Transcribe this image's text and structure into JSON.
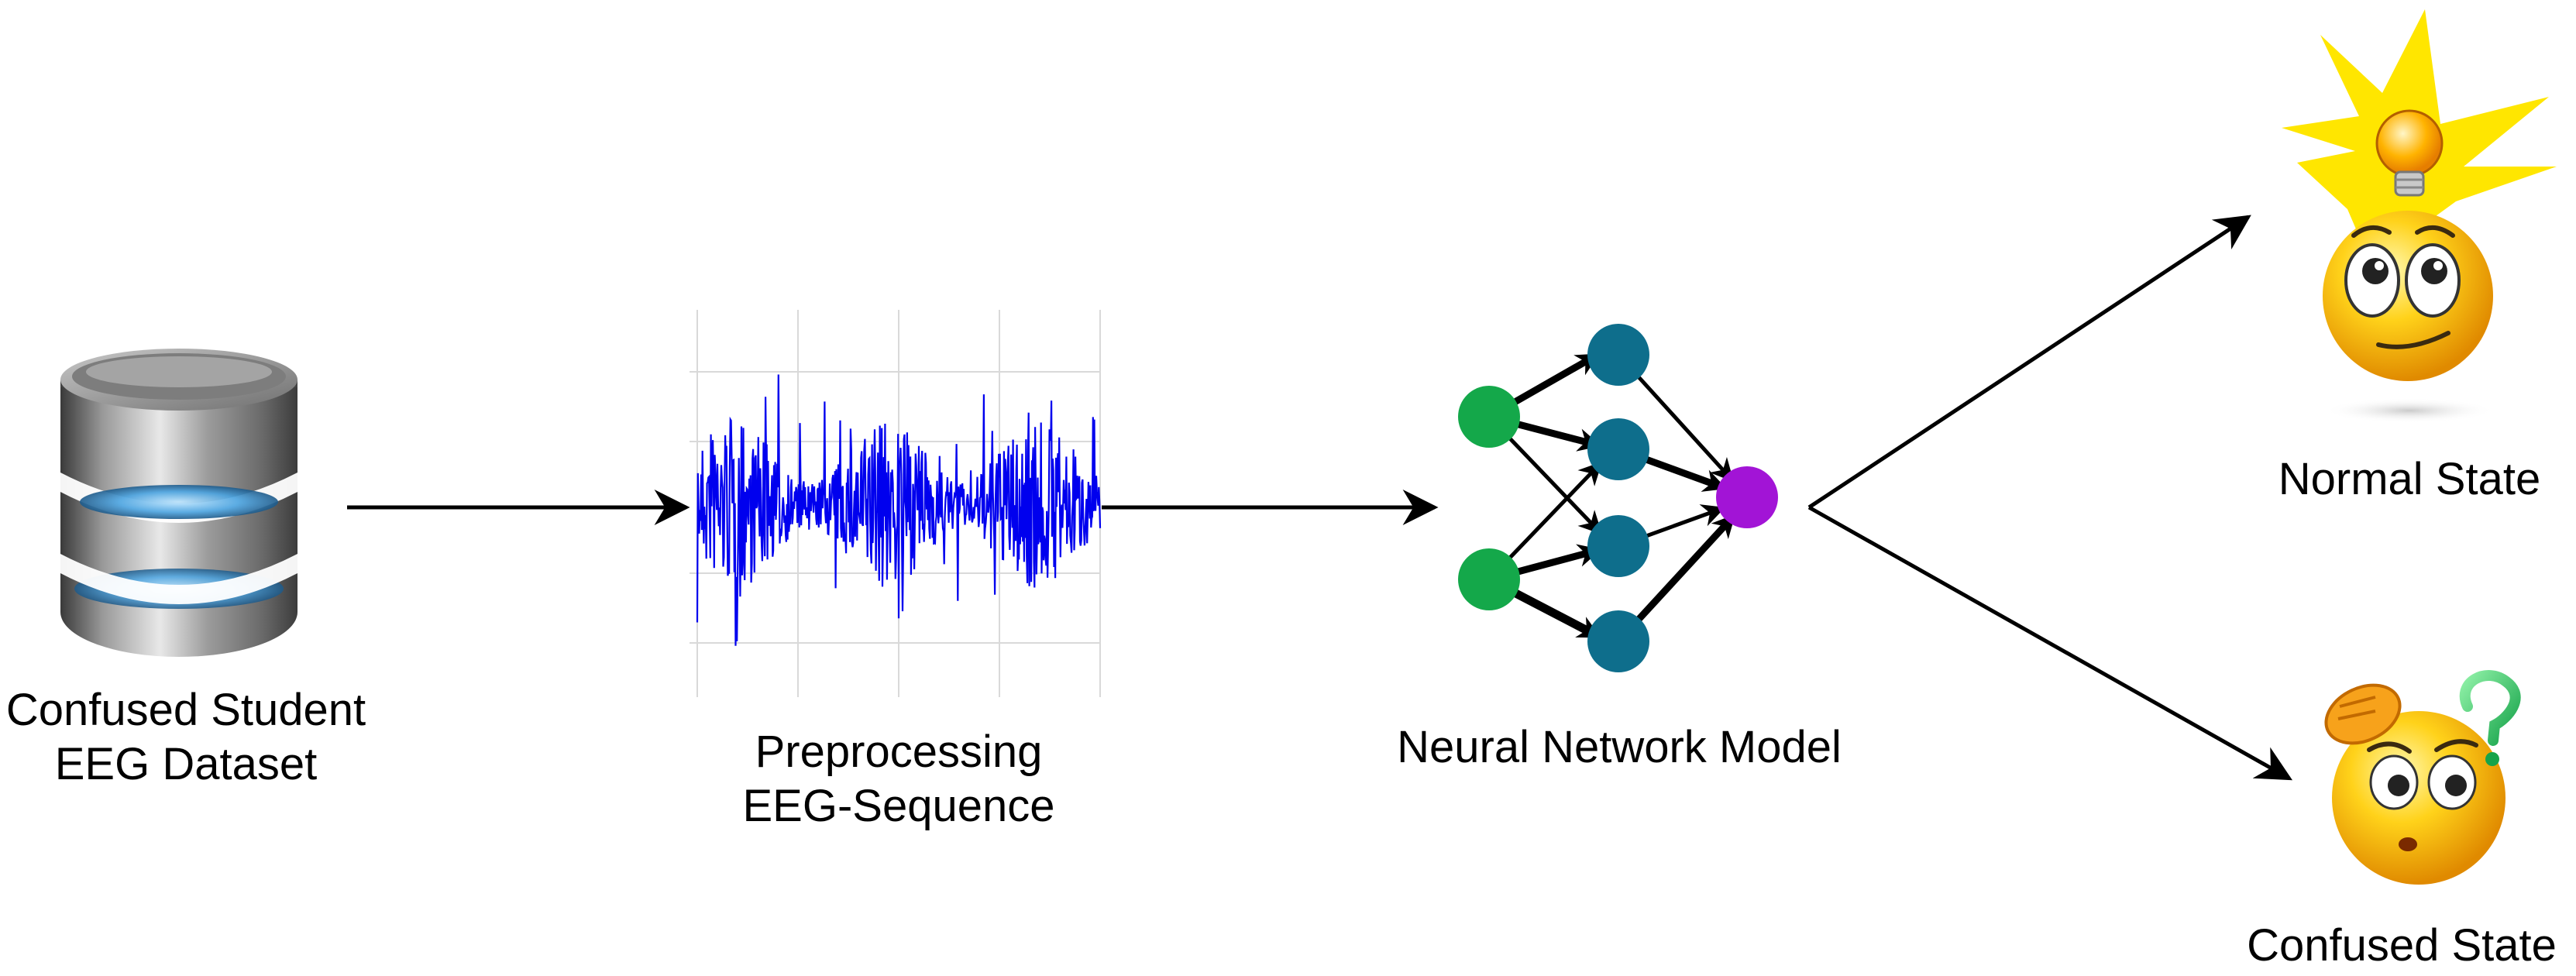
{
  "nodes": {
    "dataset": {
      "line1": "Confused Student",
      "line2": "EEG Dataset",
      "icon": "database-icon"
    },
    "preprocessing": {
      "line1": "Preprocessing",
      "line2": "EEG-Sequence",
      "icon": "eeg-signal-icon"
    },
    "model": {
      "label": "Neural Network Model",
      "icon": "neural-network-icon"
    },
    "normal": {
      "label": "Normal State",
      "icon": "idea-smiley-icon"
    },
    "confused": {
      "label": "Confused State",
      "icon": "confused-smiley-icon"
    }
  },
  "colors": {
    "signal": "#0000ee",
    "input_neuron": "#14a84a",
    "hidden_neuron": "#0e6e8c",
    "output_neuron": "#a214d6",
    "arrow": "#000000",
    "emoji_face": "#f2b80c",
    "sun_ray": "#ffe600"
  }
}
